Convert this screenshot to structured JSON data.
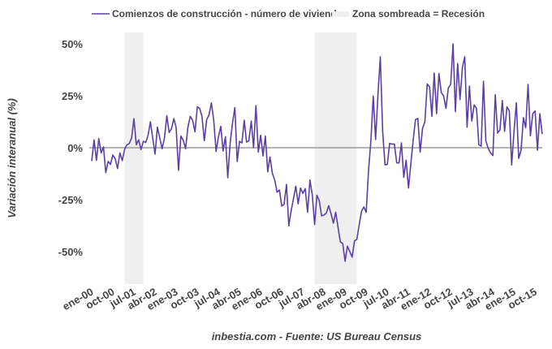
{
  "chart_data": {
    "type": "line",
    "title": "",
    "xlabel": "",
    "ylabel": "Variación interanual (%)",
    "source": "inbestia.com - Fuente: US Bureau Census",
    "x_start": "2000-01",
    "x_frequency": "monthly",
    "ylim": [
      -65,
      55
    ],
    "y_ticks": [
      50,
      25,
      0,
      -25,
      -50
    ],
    "y_tick_labels": [
      "50%",
      "25%",
      "0%",
      "-25%",
      "-50%"
    ],
    "x_tick_labels": [
      "ene-00",
      "oct-00",
      "jul-01",
      "abr-02",
      "ene-03",
      "oct-03",
      "jul-04",
      "abr-05",
      "ene-06",
      "oct-06",
      "jul-07",
      "abr-08",
      "ene-09",
      "oct-09",
      "jul-10",
      "abr-11",
      "ene-12",
      "oct-12",
      "jul-13",
      "abr-14",
      "ene-15",
      "oct-15"
    ],
    "zero_line": true,
    "grid": false,
    "legend_position": "top",
    "series": [
      {
        "name": "Comienzos de construcción - número de viviendas",
        "color": "#5b3fa3",
        "values": [
          -6.4,
          3.8,
          -6,
          4.4,
          -2.5,
          0.4,
          -12,
          -6.6,
          -8,
          -3.5,
          -5.3,
          -10,
          -2.5,
          -6.2,
          -0.8,
          1.4,
          2,
          4.7,
          14,
          1.4,
          3.8,
          -0.9,
          3.1,
          2.5,
          6,
          12.5,
          4.7,
          -3.1,
          9.9,
          4.7,
          -0.5,
          4.7,
          15.4,
          7.3,
          9.2,
          14,
          9.6,
          -10.9,
          5.6,
          3.6,
          -0.5,
          9.9,
          15.1,
          13.2,
          7.7,
          19.7,
          19,
          15.1,
          3.4,
          13.5,
          15.8,
          21.6,
          13.2,
          -1.8,
          5.3,
          10.3,
          -1.6,
          5.3,
          -14.5,
          2.1,
          11.8,
          19.3,
          -6.6,
          3.1,
          2.3,
          13.2,
          2.7,
          3.4,
          12.8,
          0,
          20.3,
          -2.1,
          6,
          -4,
          5.6,
          -11.6,
          -4.4,
          -12.2,
          -15.5,
          -21.4,
          -20.3,
          -28.1,
          -27.2,
          -17.7,
          -37.6,
          -30.5,
          -24.6,
          -18.5,
          -27,
          -19.4,
          -22,
          -19.7,
          -31.1,
          -15.5,
          -22.7,
          -37,
          -22.9,
          -25.5,
          -32.8,
          -32.4,
          -31.5,
          -27.9,
          -31.8,
          -36.3,
          -31.1,
          -38.3,
          -45.4,
          -46.1,
          -54.6,
          -47.4,
          -50,
          -52.6,
          -44.8,
          -44.1,
          -37,
          -30.5,
          -28.5,
          -31.1,
          -10.9,
          3.4,
          24.9,
          4,
          25.5,
          43.8,
          7.9,
          -8.3,
          -8.1,
          2.1,
          1.7,
          1.7,
          -7.3,
          -7.3,
          2.3,
          -14.2,
          -6,
          -19.4,
          -8.3,
          3.4,
          13.5,
          14.1,
          -2.2,
          9.2,
          12.5,
          30.7,
          29.2,
          15.1,
          35.9,
          16.4,
          35.7,
          26.6,
          24.9,
          19,
          28.8,
          30.5,
          50,
          17.4,
          40.5,
          23.2,
          38.5,
          43.8,
          9.9,
          29.7,
          12.8,
          20.6,
          19,
          1.4,
          0.8,
          32,
          3.4,
          -0.3,
          -2.5,
          -3.8,
          25.5,
          7,
          8.6,
          22.7,
          7.9,
          19.7,
          17.7,
          -8.3,
          7.9,
          21.6,
          -5.1,
          -1.2,
          14.5,
          9.6,
          30.5,
          5.7,
          16.4,
          17.7,
          -1.2,
          16.4,
          6.6
        ]
      }
    ],
    "shaded_regions": {
      "name": "Zona sombreada = Recesión",
      "color": "#efefef",
      "ranges": [
        [
          "2001-03",
          "2001-11"
        ],
        [
          "2007-12",
          "2009-06"
        ]
      ]
    }
  }
}
